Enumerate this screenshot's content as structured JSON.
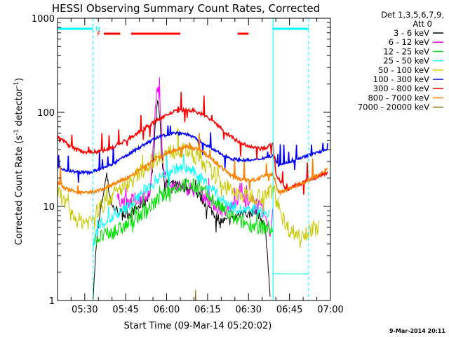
{
  "chart_data": {
    "type": "line",
    "title": "HESSI Observing Summary Count Rates, Corrected",
    "xlabel": "Start Time (09-Mar-14 05:20:02)",
    "ylabel_main": "Corrected Count Rate (s",
    "ylabel_mid": " detector",
    "ylabel_close": ")",
    "ylabel_sup": "-1",
    "x_ticks": [
      "05:30",
      "05:45",
      "06:00",
      "06:15",
      "06:30",
      "06:45",
      "07:00"
    ],
    "x_tick_minutes": [
      30,
      45,
      60,
      75,
      90,
      105,
      120
    ],
    "xlim_minutes": [
      20.03,
      120
    ],
    "y_scale": "log",
    "y_ticks": [
      "1",
      "10",
      "100",
      "1000"
    ],
    "y_tick_values": [
      1,
      10,
      100,
      1000
    ],
    "ylim": [
      1,
      1000
    ],
    "legend_header_1": "Det 1,3,5,6,7,9,",
    "legend_header_2": "Att 0",
    "legend_position": "right",
    "series": [
      {
        "name": "3 - 6 keV",
        "color": "#000000",
        "points": [
          [
            33,
            1
          ],
          [
            34,
            3
          ],
          [
            35,
            6
          ],
          [
            36,
            10
          ],
          [
            37,
            15
          ],
          [
            38,
            22
          ],
          [
            39,
            14
          ],
          [
            40,
            10
          ],
          [
            42,
            9
          ],
          [
            45,
            8
          ],
          [
            48,
            9
          ],
          [
            50,
            10
          ],
          [
            52,
            11
          ],
          [
            54,
            14
          ],
          [
            55,
            30
          ],
          [
            56,
            80
          ],
          [
            56.7,
            140
          ],
          [
            57.5,
            90
          ],
          [
            58,
            40
          ],
          [
            59,
            20
          ],
          [
            60,
            18
          ],
          [
            63,
            17
          ],
          [
            66,
            16
          ],
          [
            69,
            15
          ],
          [
            72,
            13
          ],
          [
            75,
            10
          ],
          [
            78,
            8
          ],
          [
            80,
            7
          ],
          [
            83,
            7
          ],
          [
            86,
            8
          ],
          [
            88,
            9
          ],
          [
            90,
            8
          ],
          [
            92,
            9
          ],
          [
            94,
            8
          ],
          [
            96,
            6
          ],
          [
            97,
            3
          ],
          [
            98,
            1
          ]
        ]
      },
      {
        "name": "6 - 12 keV",
        "color": "#ff00ff",
        "points": [
          [
            42,
            12
          ],
          [
            45,
            11
          ],
          [
            48,
            12
          ],
          [
            50,
            12
          ],
          [
            52,
            13
          ],
          [
            54,
            14
          ],
          [
            55,
            40
          ],
          [
            56,
            120
          ],
          [
            56.7,
            195
          ],
          [
            57.3,
            150
          ],
          [
            58,
            60
          ],
          [
            59,
            25
          ],
          [
            60,
            18
          ],
          [
            63,
            17
          ],
          [
            66,
            16
          ],
          [
            69,
            15
          ],
          [
            72,
            14
          ],
          [
            75,
            12
          ],
          [
            78,
            10
          ],
          [
            80,
            9
          ],
          [
            82,
            9
          ],
          [
            84,
            10
          ],
          [
            86,
            12
          ],
          [
            87,
            16
          ],
          [
            88,
            12
          ],
          [
            90,
            10
          ],
          [
            92,
            12
          ],
          [
            94,
            10
          ],
          [
            96,
            8
          ],
          [
            98,
            5
          ],
          [
            99,
            11
          ]
        ]
      },
      {
        "name": "12 - 25 keV",
        "color": "#00e000",
        "points": [
          [
            33,
            4
          ],
          [
            34,
            4.5
          ],
          [
            38,
            5
          ],
          [
            42,
            5.5
          ],
          [
            46,
            6.5
          ],
          [
            50,
            8
          ],
          [
            54,
            10
          ],
          [
            58,
            12.5
          ],
          [
            62,
            15
          ],
          [
            66,
            17
          ],
          [
            70,
            16.5
          ],
          [
            74,
            14
          ],
          [
            78,
            11
          ],
          [
            82,
            8.5
          ],
          [
            86,
            7
          ],
          [
            90,
            6.5
          ],
          [
            94,
            6
          ],
          [
            97,
            6
          ],
          [
            99,
            5.5
          ]
        ]
      },
      {
        "name": "25 - 50 keV",
        "color": "#00ffff",
        "points": [
          [
            33,
            3.5
          ],
          [
            34,
            5
          ],
          [
            36,
            6.5
          ],
          [
            40,
            7.5
          ],
          [
            44,
            9
          ],
          [
            48,
            11.5
          ],
          [
            52,
            15
          ],
          [
            56,
            19
          ],
          [
            60,
            23
          ],
          [
            64,
            25.5
          ],
          [
            68,
            25
          ],
          [
            72,
            21
          ],
          [
            76,
            16
          ],
          [
            80,
            12
          ],
          [
            84,
            10
          ],
          [
            88,
            9
          ],
          [
            92,
            9
          ],
          [
            96,
            8.5
          ],
          [
            98,
            8
          ]
        ]
      },
      {
        "name": "50 - 100 keV",
        "color": "#c8c800",
        "points": [
          [
            20,
            15
          ],
          [
            22,
            12
          ],
          [
            25,
            8
          ],
          [
            28,
            7
          ],
          [
            32,
            7
          ],
          [
            36,
            10
          ],
          [
            40,
            13
          ],
          [
            44,
            16
          ],
          [
            48,
            20
          ],
          [
            52,
            26
          ],
          [
            56,
            32
          ],
          [
            60,
            37
          ],
          [
            64,
            39.5
          ],
          [
            68,
            38
          ],
          [
            72,
            32
          ],
          [
            76,
            24
          ],
          [
            80,
            18
          ],
          [
            84,
            14
          ],
          [
            88,
            13
          ],
          [
            92,
            13
          ],
          [
            96,
            13
          ],
          [
            99,
            15
          ],
          [
            101,
            10
          ],
          [
            104,
            6
          ],
          [
            108,
            5
          ],
          [
            112,
            5.5
          ],
          [
            116,
            6
          ]
        ]
      },
      {
        "name": "100 - 300 keV",
        "color": "#0000ff",
        "points": [
          [
            20,
            26
          ],
          [
            24,
            24
          ],
          [
            28,
            23
          ],
          [
            32,
            23
          ],
          [
            36,
            25
          ],
          [
            40,
            28
          ],
          [
            44,
            33
          ],
          [
            48,
            39
          ],
          [
            52,
            46
          ],
          [
            56,
            53
          ],
          [
            60,
            58
          ],
          [
            64,
            61
          ],
          [
            68,
            58
          ],
          [
            72,
            50
          ],
          [
            76,
            42
          ],
          [
            80,
            36
          ],
          [
            84,
            32
          ],
          [
            88,
            31
          ],
          [
            92,
            31
          ],
          [
            96,
            33
          ],
          [
            99,
            35
          ],
          [
            101,
            27
          ],
          [
            104,
            29
          ],
          [
            108,
            32
          ],
          [
            112,
            35
          ],
          [
            116,
            38
          ],
          [
            119,
            40
          ]
        ]
      },
      {
        "name": "300 - 800 keV",
        "color": "#ff0000",
        "points": [
          [
            20,
            55
          ],
          [
            22,
            50
          ],
          [
            24,
            45
          ],
          [
            27,
            40
          ],
          [
            30,
            38
          ],
          [
            34,
            38
          ],
          [
            38,
            40
          ],
          [
            42,
            45
          ],
          [
            46,
            52
          ],
          [
            50,
            62
          ],
          [
            54,
            74
          ],
          [
            58,
            88
          ],
          [
            62,
            100
          ],
          [
            66,
            106
          ],
          [
            70,
            104
          ],
          [
            74,
            92
          ],
          [
            78,
            76
          ],
          [
            82,
            60
          ],
          [
            86,
            49
          ],
          [
            90,
            43
          ],
          [
            94,
            41
          ],
          [
            97,
            42
          ],
          [
            99,
            48
          ],
          [
            100,
            22
          ],
          [
            104,
            15
          ],
          [
            108,
            17
          ],
          [
            112,
            19
          ],
          [
            116,
            21
          ],
          [
            119,
            23
          ]
        ]
      },
      {
        "name": "800 - 7000 keV",
        "color": "#ff8000",
        "points": [
          [
            20,
            18
          ],
          [
            22,
            16
          ],
          [
            24,
            15
          ],
          [
            28,
            14
          ],
          [
            32,
            14
          ],
          [
            36,
            15
          ],
          [
            40,
            17
          ],
          [
            44,
            19
          ],
          [
            48,
            22
          ],
          [
            52,
            27
          ],
          [
            56,
            32
          ],
          [
            60,
            37
          ],
          [
            64,
            41
          ],
          [
            68,
            43
          ],
          [
            72,
            40
          ],
          [
            76,
            33
          ],
          [
            80,
            26
          ],
          [
            84,
            21
          ],
          [
            88,
            19
          ],
          [
            92,
            19
          ],
          [
            96,
            21
          ],
          [
            99,
            22
          ],
          [
            101,
            14
          ],
          [
            104,
            15
          ],
          [
            108,
            17
          ],
          [
            112,
            19
          ],
          [
            116,
            22
          ],
          [
            119,
            25
          ]
        ]
      },
      {
        "name": "7000 - 20000 keV",
        "color": "#8c6400",
        "points": [
          [
            70.5,
            1
          ],
          [
            70.6,
            1.3
          ],
          [
            70.7,
            1
          ]
        ]
      }
    ],
    "flag_bars": [
      {
        "name": "F",
        "color": "#ff0000",
        "intervals": [
          [
            37,
            43
          ],
          [
            47,
            65
          ],
          [
            86,
            90
          ]
        ]
      },
      {
        "name": "N",
        "color": "#00ffff",
        "intervals": [
          [
            20,
            33
          ]
        ]
      }
    ],
    "night_markers": [
      33,
      99,
      112
    ]
  },
  "footer": {
    "date_stamp": "9-Mar-2014 20:11"
  }
}
